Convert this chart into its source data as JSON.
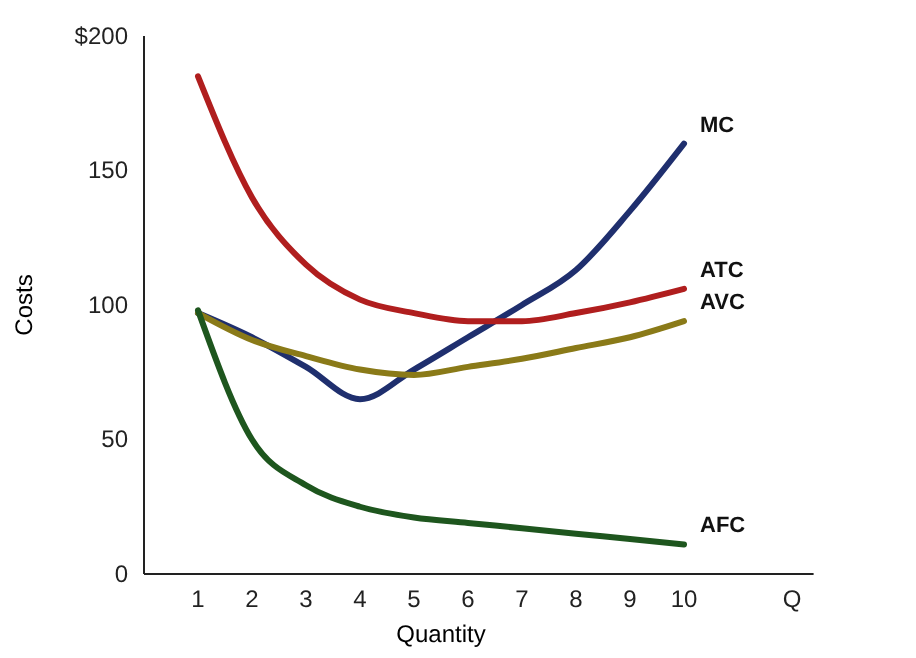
{
  "chart_data": {
    "type": "line",
    "xlabel": "Quantity",
    "ylabel": "Costs",
    "x": [
      1,
      2,
      3,
      4,
      5,
      6,
      7,
      8,
      9,
      10
    ],
    "xlim": [
      0,
      12.4
    ],
    "xticks": [
      1,
      2,
      3,
      4,
      5,
      6,
      7,
      8,
      9,
      10,
      {
        "value": 12,
        "label": "Q"
      }
    ],
    "ylim": [
      0,
      200
    ],
    "yticks": [
      {
        "value": 0,
        "label": "0"
      },
      50,
      100,
      150,
      {
        "value": 200,
        "label": "$200"
      }
    ],
    "grid": false,
    "legend": false,
    "marker": "none",
    "line_style": "solid",
    "series": [
      {
        "name": "MC",
        "color": "#1f2f6e",
        "values": [
          97,
          88,
          77,
          65,
          76,
          88,
          100,
          113,
          135,
          160
        ]
      },
      {
        "name": "ATC",
        "color": "#b01e1e",
        "values": [
          185,
          140,
          115,
          102,
          97,
          94,
          94,
          97,
          101,
          106
        ]
      },
      {
        "name": "AVC",
        "color": "#8a7a18",
        "values": [
          97,
          87,
          81,
          76,
          74,
          77,
          80,
          84,
          88,
          94
        ]
      },
      {
        "name": "AFC",
        "color": "#1e561e",
        "values": [
          98,
          50,
          33,
          25,
          21,
          19,
          17,
          15,
          13,
          11
        ]
      }
    ]
  }
}
